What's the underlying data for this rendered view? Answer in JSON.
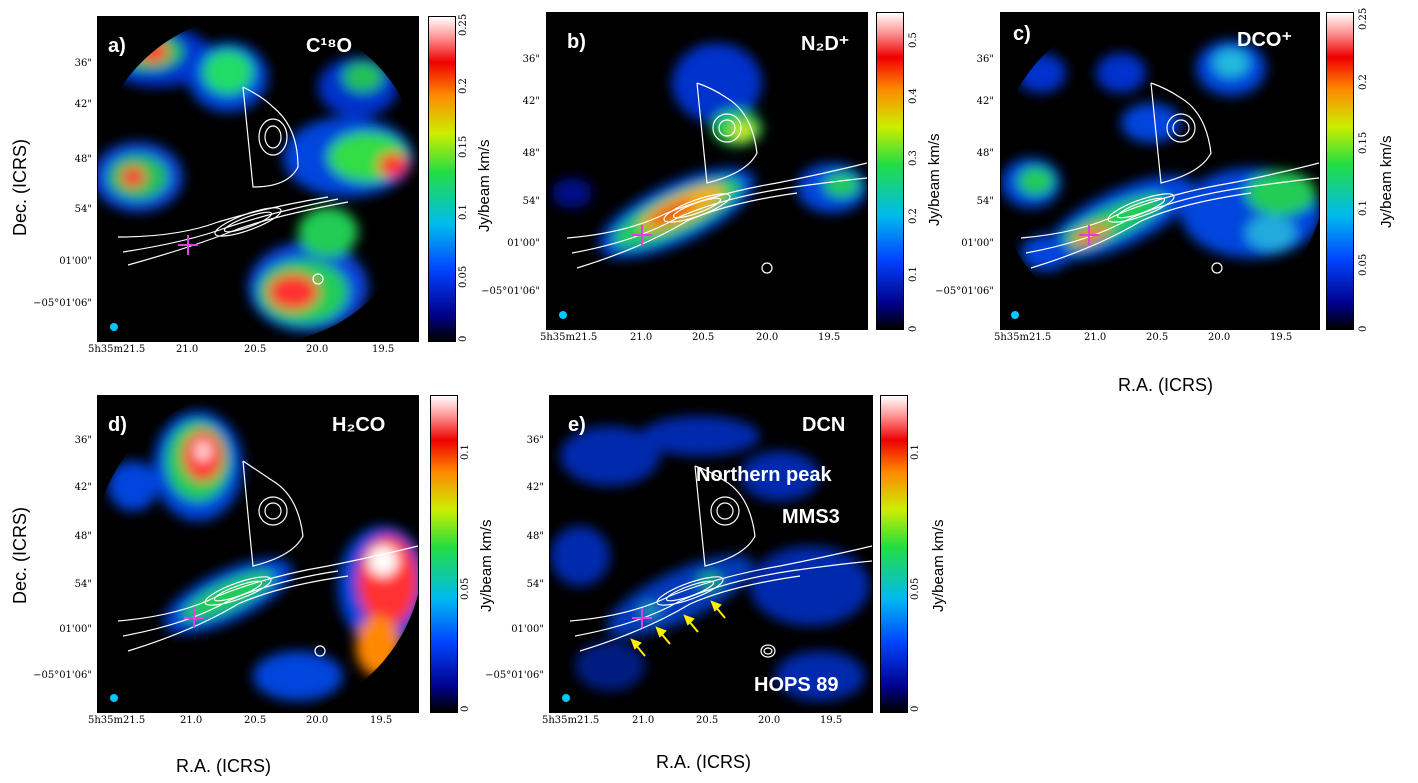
{
  "colorbar_unit": "Jy/beam km/s",
  "axis_titles": {
    "dec": "Dec. (ICRS)",
    "ra": "R.A. (ICRS)"
  },
  "ra_ticks": [
    "5h35m21.5",
    "21.0",
    "20.5",
    "20.0",
    "19.5"
  ],
  "dec_ticks": [
    "36\"",
    "42\"",
    "48\"",
    "54\"",
    "01'00\"",
    "−05°01'06\""
  ],
  "panels": {
    "a": {
      "label": "a)",
      "molecule": "C¹⁸O",
      "cbar_ticks": [
        "0.25",
        "0.2",
        "0.15",
        "0.1",
        "0.05",
        "0"
      ]
    },
    "b": {
      "label": "b)",
      "molecule": "N₂D⁺",
      "cbar_ticks": [
        "0.5",
        "0.4",
        "0.3",
        "0.2",
        "0.1",
        "0"
      ]
    },
    "c": {
      "label": "c)",
      "molecule": "DCO⁺",
      "cbar_ticks": [
        "0.25",
        "0.2",
        "0.15",
        "0.1",
        "0.05",
        "0"
      ]
    },
    "d": {
      "label": "d)",
      "molecule": "H₂CO",
      "cbar_ticks": [
        "0.1",
        "0.05",
        "0"
      ]
    },
    "e": {
      "label": "e)",
      "molecule": "DCN",
      "cbar_ticks": [
        "0.1",
        "0.05",
        "0"
      ],
      "annotations": [
        "Northern peak",
        "MMS3",
        "HOPS 89"
      ]
    }
  },
  "colors": {
    "marker": "#e040e0",
    "arrow": "#ffee00",
    "beam": "#00c8ff"
  }
}
